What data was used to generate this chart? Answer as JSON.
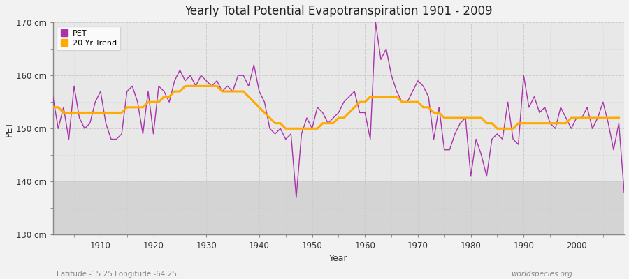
{
  "title": "Yearly Total Potential Evapotranspiration 1901 - 2009",
  "xlabel": "Year",
  "ylabel": "PET",
  "subtitle_left": "Latitude -15.25 Longitude -64.25",
  "subtitle_right": "worldspecies.org",
  "ylim": [
    130,
    170
  ],
  "xlim": [
    1901,
    2009
  ],
  "yticks": [
    130,
    140,
    150,
    160,
    170
  ],
  "ytick_labels": [
    "130 cm",
    "140 cm",
    "150 cm",
    "160 cm",
    "170 cm"
  ],
  "xticks": [
    1910,
    1920,
    1930,
    1940,
    1950,
    1960,
    1970,
    1980,
    1990,
    2000
  ],
  "pet_color": "#aa33aa",
  "trend_color": "#ffaa00",
  "figure_bg": "#f0f0f0",
  "plot_bg_upper": "#e8e8e8",
  "plot_bg_lower": "#d8d8d8",
  "grid_color": "#cccccc",
  "spine_color": "#888888",
  "pet_data": {
    "years": [
      1901,
      1902,
      1903,
      1904,
      1905,
      1906,
      1907,
      1908,
      1909,
      1910,
      1911,
      1912,
      1913,
      1914,
      1915,
      1916,
      1917,
      1918,
      1919,
      1920,
      1921,
      1922,
      1923,
      1924,
      1925,
      1926,
      1927,
      1928,
      1929,
      1930,
      1931,
      1932,
      1933,
      1934,
      1935,
      1936,
      1937,
      1938,
      1939,
      1940,
      1941,
      1942,
      1943,
      1944,
      1945,
      1946,
      1947,
      1948,
      1949,
      1950,
      1951,
      1952,
      1953,
      1954,
      1955,
      1956,
      1957,
      1958,
      1959,
      1960,
      1961,
      1962,
      1963,
      1964,
      1965,
      1966,
      1967,
      1968,
      1969,
      1970,
      1971,
      1972,
      1973,
      1974,
      1975,
      1976,
      1977,
      1978,
      1979,
      1980,
      1981,
      1982,
      1983,
      1984,
      1985,
      1986,
      1987,
      1988,
      1989,
      1990,
      1991,
      1992,
      1993,
      1994,
      1995,
      1996,
      1997,
      1998,
      1999,
      2000,
      2001,
      2002,
      2003,
      2004,
      2005,
      2006,
      2007,
      2008,
      2009
    ],
    "values": [
      156,
      150,
      154,
      148,
      158,
      152,
      150,
      151,
      155,
      157,
      151,
      148,
      148,
      149,
      157,
      158,
      155,
      149,
      157,
      149,
      158,
      157,
      155,
      159,
      161,
      159,
      160,
      158,
      160,
      159,
      158,
      159,
      157,
      158,
      157,
      160,
      160,
      158,
      162,
      157,
      155,
      150,
      149,
      150,
      148,
      149,
      137,
      149,
      152,
      150,
      154,
      153,
      151,
      152,
      153,
      155,
      156,
      157,
      153,
      153,
      148,
      170,
      163,
      165,
      160,
      157,
      155,
      155,
      157,
      159,
      158,
      156,
      148,
      154,
      146,
      146,
      149,
      151,
      152,
      141,
      148,
      145,
      141,
      148,
      149,
      148,
      155,
      148,
      147,
      160,
      154,
      156,
      153,
      154,
      151,
      150,
      154,
      152,
      150,
      152,
      152,
      154,
      150,
      152,
      155,
      151,
      146,
      151,
      138
    ]
  },
  "trend_data": {
    "years": [
      1901,
      1902,
      1903,
      1904,
      1905,
      1906,
      1907,
      1908,
      1909,
      1910,
      1911,
      1912,
      1913,
      1914,
      1915,
      1916,
      1917,
      1918,
      1919,
      1920,
      1921,
      1922,
      1923,
      1924,
      1925,
      1926,
      1927,
      1928,
      1929,
      1930,
      1931,
      1932,
      1933,
      1934,
      1935,
      1936,
      1937,
      1938,
      1939,
      1940,
      1941,
      1942,
      1943,
      1944,
      1945,
      1946,
      1947,
      1948,
      1949,
      1950,
      1951,
      1952,
      1953,
      1954,
      1955,
      1956,
      1957,
      1958,
      1959,
      1960,
      1961,
      1962,
      1963,
      1964,
      1965,
      1966,
      1967,
      1968,
      1969,
      1970,
      1971,
      1972,
      1973,
      1974,
      1975,
      1976,
      1977,
      1978,
      1979,
      1980,
      1981,
      1982,
      1983,
      1984,
      1985,
      1986,
      1987,
      1988,
      1989,
      1990,
      1991,
      1992,
      1993,
      1994,
      1995,
      1996,
      1997,
      1998,
      1999,
      2000,
      2001,
      2002,
      2003,
      2004,
      2005,
      2006,
      2007,
      2008
    ],
    "values": [
      154,
      154,
      153,
      153,
      153,
      153,
      153,
      153,
      153,
      153,
      153,
      153,
      153,
      153,
      154,
      154,
      154,
      154,
      155,
      155,
      155,
      156,
      156,
      157,
      157,
      158,
      158,
      158,
      158,
      158,
      158,
      158,
      157,
      157,
      157,
      157,
      157,
      156,
      155,
      154,
      153,
      152,
      151,
      151,
      150,
      150,
      150,
      150,
      150,
      150,
      150,
      151,
      151,
      151,
      152,
      152,
      153,
      154,
      155,
      155,
      156,
      156,
      156,
      156,
      156,
      156,
      155,
      155,
      155,
      155,
      154,
      154,
      153,
      153,
      152,
      152,
      152,
      152,
      152,
      152,
      152,
      152,
      151,
      151,
      150,
      150,
      150,
      150,
      151,
      151,
      151,
      151,
      151,
      151,
      151,
      151,
      151,
      151,
      152,
      152,
      152,
      152,
      152,
      152,
      152,
      152,
      152,
      152
    ]
  }
}
